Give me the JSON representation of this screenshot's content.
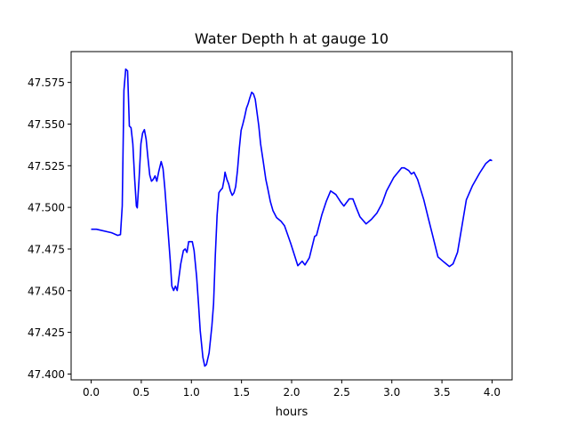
{
  "chart_data": {
    "type": "line",
    "title": "Water Depth h at gauge 10",
    "xlabel": "hours",
    "ylabel": "",
    "xlim": [
      -0.2,
      4.2
    ],
    "ylim": [
      47.3965,
      47.5935
    ],
    "xticks": [
      0.0,
      0.5,
      1.0,
      1.5,
      2.0,
      2.5,
      3.0,
      3.5,
      4.0
    ],
    "xtick_labels": [
      "0.0",
      "0.5",
      "1.0",
      "1.5",
      "2.0",
      "2.5",
      "3.0",
      "3.5",
      "4.0"
    ],
    "yticks": [
      47.4,
      47.425,
      47.45,
      47.475,
      47.5,
      47.525,
      47.55,
      47.575
    ],
    "ytick_labels": [
      "47.400",
      "47.425",
      "47.450",
      "47.475",
      "47.500",
      "47.525",
      "47.550",
      "47.575"
    ],
    "grid": false,
    "series": [
      {
        "name": "h",
        "color": "#0000ff",
        "x": [
          0,
          0.053,
          0.204,
          0.265,
          0.292,
          0.31,
          0.327,
          0.345,
          0.363,
          0.381,
          0.398,
          0.416,
          0.434,
          0.451,
          0.46,
          0.478,
          0.496,
          0.513,
          0.531,
          0.549,
          0.566,
          0.584,
          0.602,
          0.619,
          0.637,
          0.655,
          0.673,
          0.699,
          0.717,
          0.735,
          0.752,
          0.77,
          0.788,
          0.805,
          0.823,
          0.841,
          0.858,
          0.876,
          0.894,
          0.92,
          0.938,
          0.956,
          0.973,
          1.009,
          1.027,
          1.053,
          1.071,
          1.088,
          1.115,
          1.133,
          1.15,
          1.177,
          1.204,
          1.221,
          1.239,
          1.257,
          1.274,
          1.292,
          1.31,
          1.327,
          1.336,
          1.354,
          1.372,
          1.389,
          1.407,
          1.425,
          1.442,
          1.46,
          1.478,
          1.496,
          1.513,
          1.531,
          1.549,
          1.566,
          1.584,
          1.602,
          1.619,
          1.637,
          1.655,
          1.673,
          1.69,
          1.717,
          1.743,
          1.761,
          1.788,
          1.814,
          1.85,
          1.894,
          1.929,
          1.991,
          2.062,
          2.106,
          2.133,
          2.177,
          2.23,
          2.248,
          2.301,
          2.345,
          2.389,
          2.416,
          2.442,
          2.487,
          2.522,
          2.575,
          2.611,
          2.646,
          2.681,
          2.743,
          2.796,
          2.85,
          2.903,
          2.947,
          3.018,
          3.097,
          3.124,
          3.168,
          3.195,
          3.221,
          3.257,
          3.319,
          3.363,
          3.407,
          3.46,
          3.522,
          3.575,
          3.611,
          3.655,
          3.699,
          3.743,
          3.805,
          3.876,
          3.938,
          3.982,
          4.0
        ],
        "y": [
          47.4869,
          47.4869,
          47.4848,
          47.4832,
          47.4837,
          47.5008,
          47.5702,
          47.583,
          47.5819,
          47.5488,
          47.5478,
          47.5382,
          47.5168,
          47.5008,
          47.4997,
          47.5168,
          47.5382,
          47.5446,
          47.5467,
          47.5408,
          47.5302,
          47.5195,
          47.5157,
          47.5168,
          47.5189,
          47.5157,
          47.5211,
          47.5275,
          47.5232,
          47.5115,
          47.4981,
          47.4837,
          47.4687,
          47.4527,
          47.4501,
          47.4527,
          47.4501,
          47.4581,
          47.4661,
          47.4741,
          47.4751,
          47.473,
          47.4794,
          47.4794,
          47.4741,
          47.4581,
          47.442,
          47.426,
          47.41,
          47.4047,
          47.4057,
          47.4127,
          47.4287,
          47.442,
          47.4714,
          47.4954,
          47.5088,
          47.5104,
          47.5115,
          47.5168,
          47.5211,
          47.5168,
          47.5141,
          47.5099,
          47.5072,
          47.5088,
          47.5125,
          47.5221,
          47.5355,
          47.5462,
          47.5499,
          47.5542,
          47.5595,
          47.5622,
          47.5659,
          47.5691,
          47.5681,
          47.5649,
          47.5569,
          47.5488,
          47.5382,
          47.5275,
          47.5168,
          47.5115,
          47.5035,
          47.4981,
          47.4939,
          47.4917,
          47.489,
          47.4784,
          47.465,
          47.4677,
          47.4655,
          47.4698,
          47.4826,
          47.4832,
          47.4954,
          47.5035,
          47.5099,
          47.5088,
          47.5077,
          47.5035,
          47.5008,
          47.5051,
          47.5051,
          47.4997,
          47.4944,
          47.4901,
          47.4928,
          47.4965,
          47.5024,
          47.5099,
          47.5179,
          47.5237,
          47.5237,
          47.5221,
          47.52,
          47.5211,
          47.5168,
          47.5045,
          47.4938,
          47.4832,
          47.4703,
          47.4671,
          47.4645,
          47.4661,
          47.473,
          47.4885,
          47.5045,
          47.5131,
          47.5206,
          47.5264,
          47.5286,
          47.528
        ]
      }
    ]
  }
}
